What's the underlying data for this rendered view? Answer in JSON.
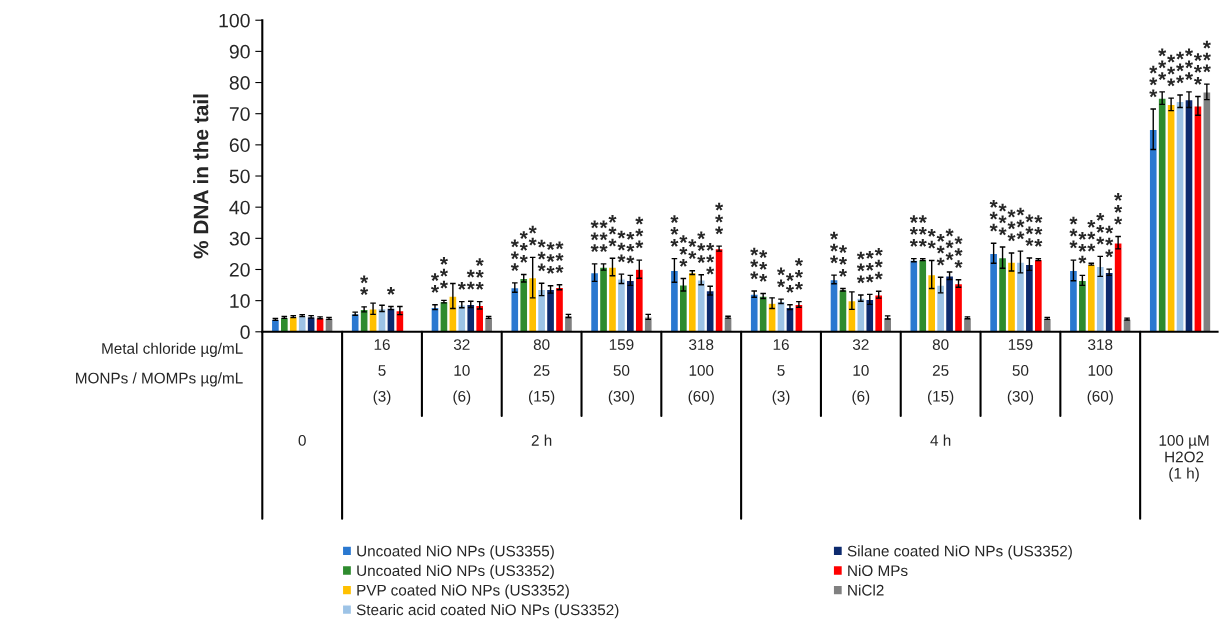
{
  "chart_data": {
    "type": "bar",
    "ylabel": "% DNA in the tail",
    "categories": [
      null,
      "16\n5\n(3)",
      "32\n10\n(6)",
      "80\n25\n(15)",
      "159\n50\n(30)",
      "318\n100\n(60)",
      "16\n5\n(3)",
      "32\n10\n(6)",
      "80\n25\n(15)",
      "159\n50\n(30)",
      "318\n100\n(60)",
      null
    ],
    "annotations": [
      "Metal chloride µg/mL",
      "MONPs / MOMPs µg/mL",
      "0",
      "2 h",
      "4 h",
      "100 µM\nH2O2\n(1 h)"
    ],
    "ylim": [
      0,
      100
    ],
    "yticks": [
      0,
      10,
      20,
      30,
      40,
      50,
      60,
      70,
      80,
      90,
      100
    ],
    "grid": false,
    "legend": "bottom",
    "series": [
      {
        "name": "Uncoated NiO NPs (US3355)",
        "color": "#2a78d0",
        "values": [
          4.0,
          5.8,
          7.9,
          14.2,
          19.0,
          19.7,
          12.1,
          16.8,
          23.0,
          25.2,
          19.7,
          65
        ],
        "errors": [
          0.3,
          0.5,
          0.8,
          1.5,
          2.8,
          3.8,
          1.0,
          1.4,
          0.5,
          3.2,
          3.3,
          6.5
        ],
        "value_labels": [
          null,
          null,
          "**",
          "***",
          "***",
          "***",
          "***",
          "***",
          "***",
          "***",
          "***",
          "***"
        ]
      },
      {
        "name": "Uncoated NiO NPs (US3352)",
        "color": "#2e8b2e",
        "values": [
          4.6,
          7.2,
          9.7,
          17.2,
          20.8,
          15.1,
          11.5,
          13.5,
          23.2,
          23.8,
          16.5,
          75
        ],
        "errors": [
          0.3,
          0.8,
          0.4,
          1.2,
          1.0,
          2.0,
          0.8,
          0.4,
          0.3,
          3.4,
          1.6,
          2
        ],
        "value_labels": [
          null,
          "**",
          "***",
          "***",
          "***",
          "***",
          "***",
          "***",
          "***",
          "***",
          "***",
          "***"
        ]
      },
      {
        "name": "PVP coated NiO NPs (US3352)",
        "color": "#ffc000",
        "values": [
          4.9,
          7.4,
          11.5,
          17.4,
          20.8,
          19.0,
          9.2,
          10.0,
          18.4,
          22.4,
          21.7,
          73
        ],
        "errors": [
          0.3,
          1.8,
          4.0,
          6.5,
          2.8,
          0.6,
          1.7,
          2.8,
          4.5,
          2.9,
          0.3,
          2
        ],
        "value_labels": [
          null,
          null,
          null,
          "**",
          "***",
          "**",
          null,
          null,
          "**",
          "***",
          "***",
          "***"
        ]
      },
      {
        "name": "Stearic acid coated NiO NPs (US3352)",
        "color": "#9dc3e6",
        "values": [
          5.2,
          7.5,
          8.7,
          13.6,
          17.0,
          16.7,
          9.8,
          10.8,
          15.0,
          22.4,
          21.0,
          74
        ],
        "errors": [
          0.3,
          1.0,
          1.0,
          2.0,
          1.5,
          1.6,
          0.7,
          1.0,
          2.5,
          3.5,
          3.2,
          2
        ],
        "value_labels": [
          null,
          null,
          "*",
          "***",
          "***",
          "***",
          "**",
          "***",
          "***",
          "***",
          "***",
          "***"
        ]
      },
      {
        "name": "Silane coated NiO NPs (US3352)",
        "color": "#0d2a6e",
        "values": [
          4.8,
          7.6,
          8.8,
          13.6,
          16.5,
          13.2,
          7.9,
          10.4,
          18.0,
          21.7,
          19.1,
          74.5
        ],
        "errors": [
          0.4,
          0.5,
          1.0,
          1.2,
          1.6,
          1.4,
          0.8,
          1.6,
          1.2,
          2.0,
          1.0,
          2.5
        ],
        "value_labels": [
          null,
          "*",
          "**",
          "***",
          "***",
          "***",
          "**",
          "***",
          "***",
          "***",
          "***",
          "***"
        ]
      },
      {
        "name": "NiO MPs",
        "color": "#ff0000",
        "values": [
          4.5,
          6.8,
          8.5,
          14.3,
          20.1,
          26.7,
          8.8,
          11.9,
          15.5,
          23.2,
          28.6,
          72.5
        ],
        "errors": [
          0.3,
          1.3,
          1.2,
          0.8,
          2.9,
          0.8,
          0.9,
          1.1,
          1.2,
          0.3,
          2.0,
          3
        ],
        "value_labels": [
          null,
          null,
          "***",
          "***",
          "***",
          "***",
          "***",
          "***",
          "***",
          "***",
          "***",
          "***"
        ]
      },
      {
        "name": "NiCl2",
        "color": "#808080",
        "values": [
          4.3,
          null,
          4.6,
          5.1,
          4.8,
          4.7,
          null,
          4.6,
          4.5,
          4.3,
          4.1,
          77
        ],
        "errors": [
          0.3,
          null,
          0.3,
          0.5,
          0.8,
          0.3,
          null,
          0.5,
          0.3,
          0.3,
          0.3,
          2.5
        ],
        "value_labels": [
          null,
          null,
          null,
          null,
          null,
          null,
          null,
          null,
          null,
          null,
          null,
          "***"
        ]
      }
    ]
  }
}
